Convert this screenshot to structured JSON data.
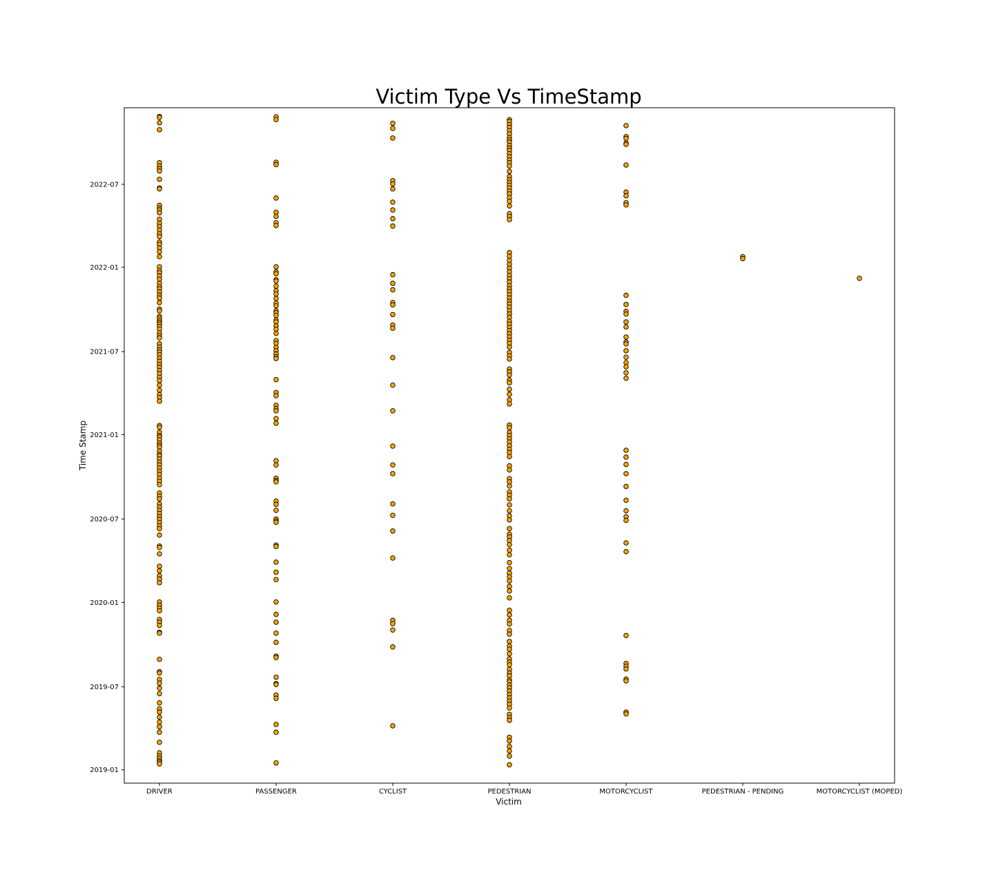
{
  "chart_data": {
    "type": "scatter",
    "title": "Victim Type Vs TimeStamp",
    "xlabel": "Victim",
    "ylabel": "Time Stamp",
    "categories": [
      "DRIVER",
      "PASSENGER",
      "CYCLIST",
      "PEDESTRIAN",
      "MOTORCYCLIST",
      "PEDESTRIAN - PENDING",
      "MOTORCYCLIST (MOPED)"
    ],
    "y_ticks": [
      "2019-01",
      "2019-07",
      "2020-01",
      "2020-07",
      "2021-01",
      "2021-07",
      "2022-01",
      "2022-07"
    ],
    "ylim": [
      "2018-12-03",
      "2022-12-15"
    ],
    "grid": false,
    "marker_face_color": "#FFA500",
    "marker_edge_color": "#000000",
    "series": [
      {
        "category": "DRIVER",
        "points": [
          "2022-11-26",
          "2022-11-24",
          "2022-11-12",
          "2022-10-28",
          "2022-08-17",
          "2022-08-10",
          "2022-08-04",
          "2022-07-30",
          "2022-07-12",
          "2022-06-23",
          "2022-06-21",
          "2022-05-16",
          "2022-05-10",
          "2022-05-06",
          "2022-04-30",
          "2022-04-16",
          "2022-04-07",
          "2022-03-31",
          "2022-03-23",
          "2022-03-15",
          "2022-03-09",
          "2022-02-25",
          "2022-02-20",
          "2022-02-12",
          "2022-02-04",
          "2022-01-24",
          "2022-01-02",
          "2021-12-25",
          "2021-12-20",
          "2021-12-13",
          "2021-12-06",
          "2021-11-27",
          "2021-11-20",
          "2021-11-15",
          "2021-11-08",
          "2021-11-01",
          "2021-10-26",
          "2021-10-16",
          "2021-10-02",
          "2021-09-28",
          "2021-09-16",
          "2021-09-12",
          "2021-09-07",
          "2021-09-03",
          "2021-08-30",
          "2021-08-25",
          "2021-08-19",
          "2021-08-11",
          "2021-08-05",
          "2021-07-31",
          "2021-07-18",
          "2021-07-11",
          "2021-07-05",
          "2021-06-30",
          "2021-06-24",
          "2021-06-17",
          "2021-06-10",
          "2021-06-03",
          "2021-05-28",
          "2021-05-21",
          "2021-05-14",
          "2021-05-06",
          "2021-04-29",
          "2021-04-19",
          "2021-04-08",
          "2021-03-29",
          "2021-03-23",
          "2021-03-15",
          "2021-01-21",
          "2021-01-17",
          "2021-01-06",
          "2020-12-30",
          "2020-12-27",
          "2020-12-21",
          "2020-12-14",
          "2020-12-09",
          "2020-12-05",
          "2020-11-26",
          "2020-11-19",
          "2020-11-16",
          "2020-11-09",
          "2020-11-02",
          "2020-10-27",
          "2020-10-20",
          "2020-10-13",
          "2020-10-06",
          "2020-09-28",
          "2020-09-21",
          "2020-09-14",
          "2020-08-27",
          "2020-08-20",
          "2020-08-14",
          "2020-08-03",
          "2020-07-27",
          "2020-07-20",
          "2020-07-13",
          "2020-07-06",
          "2020-06-30",
          "2020-06-23",
          "2020-06-16",
          "2020-06-10",
          "2020-05-27",
          "2020-05-03",
          "2020-04-30",
          "2020-04-16",
          "2020-03-20",
          "2020-03-10",
          "2020-02-28",
          "2020-02-21",
          "2020-02-13",
          "2020-01-02",
          "2019-12-26",
          "2019-12-20",
          "2019-12-14",
          "2019-11-25",
          "2019-11-19",
          "2019-11-12",
          "2019-10-28",
          "2019-10-26",
          "2019-08-30",
          "2019-08-03",
          "2019-07-31",
          "2019-07-17",
          "2019-07-09",
          "2019-06-28",
          "2019-06-16",
          "2019-05-27",
          "2019-05-14",
          "2019-05-07",
          "2019-04-26",
          "2019-04-15",
          "2019-04-05",
          "2019-03-24",
          "2019-03-02",
          "2019-02-07",
          "2019-01-31",
          "2019-01-26",
          "2019-01-21",
          "2019-01-18",
          "2019-01-14"
        ]
      },
      {
        "category": "PASSENGER",
        "points": [
          "2022-11-25",
          "2022-11-19",
          "2022-08-18",
          "2022-08-13",
          "2022-06-01",
          "2022-05-01",
          "2022-04-22",
          "2022-04-08",
          "2022-04-02",
          "2022-01-02",
          "2021-12-22",
          "2021-12-18",
          "2021-12-05",
          "2021-12-02",
          "2021-11-21",
          "2021-11-11",
          "2021-11-04",
          "2021-10-25",
          "2021-10-15",
          "2021-10-09",
          "2021-09-28",
          "2021-09-24",
          "2021-09-18",
          "2021-09-08",
          "2021-09-04",
          "2021-08-26",
          "2021-08-19",
          "2021-08-10",
          "2021-07-25",
          "2021-07-19",
          "2021-07-10",
          "2021-07-03",
          "2021-06-26",
          "2021-06-20",
          "2021-06-16",
          "2021-05-01",
          "2021-04-03",
          "2021-03-27",
          "2021-03-06",
          "2021-02-27",
          "2021-02-22",
          "2021-02-05",
          "2021-01-26",
          "2020-11-05",
          "2020-10-27",
          "2020-09-28",
          "2020-09-23",
          "2020-09-20",
          "2020-08-09",
          "2020-08-02",
          "2020-07-20",
          "2020-07-01",
          "2020-06-27",
          "2020-06-24",
          "2020-05-05",
          "2020-05-02",
          "2020-03-29",
          "2020-03-07",
          "2020-02-20",
          "2020-01-02",
          "2019-12-06",
          "2019-11-19",
          "2019-10-26",
          "2019-10-06",
          "2019-09-06",
          "2019-09-03",
          "2019-07-22",
          "2019-07-08",
          "2019-07-06",
          "2019-06-13",
          "2019-06-06",
          "2019-04-10",
          "2019-03-24",
          "2019-01-16"
        ]
      },
      {
        "category": "CYCLIST",
        "points": [
          "2022-11-11",
          "2022-10-31",
          "2022-10-10",
          "2022-07-09",
          "2022-07-02",
          "2022-06-21",
          "2022-05-23",
          "2022-05-06",
          "2022-04-17",
          "2022-04-01",
          "2021-12-16",
          "2021-11-27",
          "2021-11-13",
          "2021-10-16",
          "2021-10-11",
          "2021-09-20",
          "2021-08-28",
          "2021-08-21",
          "2021-06-18",
          "2021-04-19",
          "2021-02-22",
          "2020-12-07",
          "2020-10-27",
          "2020-10-08",
          "2020-08-03",
          "2020-07-09",
          "2020-06-05",
          "2020-04-07",
          "2019-11-23",
          "2019-11-16",
          "2019-11-02",
          "2019-09-26",
          "2019-04-07"
        ]
      },
      {
        "category": "PEDESTRIAN",
        "points": [
          "2022-11-19",
          "2022-11-15",
          "2022-11-08",
          "2022-11-02",
          "2022-10-26",
          "2022-10-19",
          "2022-10-11",
          "2022-10-06",
          "2022-10-01",
          "2022-09-24",
          "2022-09-18",
          "2022-09-13",
          "2022-09-06",
          "2022-08-30",
          "2022-08-23",
          "2022-08-17",
          "2022-08-10",
          "2022-07-29",
          "2022-07-18",
          "2022-07-11",
          "2022-07-05",
          "2022-06-29",
          "2022-06-23",
          "2022-06-16",
          "2022-06-10",
          "2022-06-02",
          "2022-05-25",
          "2022-05-15",
          "2022-04-28",
          "2022-04-22",
          "2022-04-15",
          "2022-02-02",
          "2022-01-25",
          "2022-01-16",
          "2022-01-07",
          "2021-12-30",
          "2021-12-22",
          "2021-12-14",
          "2021-12-07",
          "2021-11-30",
          "2021-11-22",
          "2021-11-15",
          "2021-11-09",
          "2021-11-02",
          "2021-10-26",
          "2021-10-19",
          "2021-10-13",
          "2021-10-06",
          "2021-09-28",
          "2021-09-21",
          "2021-09-14",
          "2021-09-05",
          "2021-08-30",
          "2021-08-23",
          "2021-08-16",
          "2021-08-09",
          "2021-08-02",
          "2021-07-26",
          "2021-07-19",
          "2021-07-11",
          "2021-06-29",
          "2021-06-22",
          "2021-06-15",
          "2021-05-24",
          "2021-05-18",
          "2021-05-11",
          "2021-04-30",
          "2021-04-24",
          "2021-04-10",
          "2021-03-30",
          "2021-03-18",
          "2021-03-09",
          "2021-01-22",
          "2021-01-16",
          "2021-01-06",
          "2020-12-30",
          "2020-12-23",
          "2020-12-16",
          "2020-12-08",
          "2020-11-30",
          "2020-11-23",
          "2020-11-14",
          "2020-10-25",
          "2020-10-16",
          "2020-09-27",
          "2020-09-20",
          "2020-09-11",
          "2020-08-29",
          "2020-08-22",
          "2020-08-14",
          "2020-08-01",
          "2020-07-19",
          "2020-07-08",
          "2020-06-29",
          "2020-06-10",
          "2020-05-29",
          "2020-05-23",
          "2020-05-15",
          "2020-05-06",
          "2020-04-24",
          "2020-04-14",
          "2020-03-28",
          "2020-03-15",
          "2020-03-05",
          "2020-02-26",
          "2020-02-17",
          "2020-02-05",
          "2020-01-26",
          "2020-01-11",
          "2019-12-15",
          "2019-12-05",
          "2019-11-23",
          "2019-11-15",
          "2019-11-01",
          "2019-10-24",
          "2019-10-08",
          "2019-09-28",
          "2019-09-21",
          "2019-09-11",
          "2019-08-31",
          "2019-08-24",
          "2019-08-18",
          "2019-08-08",
          "2019-07-31",
          "2019-07-25",
          "2019-07-16",
          "2019-07-12",
          "2019-07-05",
          "2019-06-29",
          "2019-06-22",
          "2019-06-14",
          "2019-06-07",
          "2019-05-31",
          "2019-05-24",
          "2019-05-16",
          "2019-05-02",
          "2019-04-25",
          "2019-04-19",
          "2019-03-13",
          "2019-03-05",
          "2019-02-21",
          "2019-02-11",
          "2019-01-31",
          "2019-01-12"
        ]
      },
      {
        "category": "MOTORCYCLIST",
        "points": [
          "2022-11-06",
          "2022-10-13",
          "2022-10-09",
          "2022-09-29",
          "2022-09-26",
          "2022-08-12",
          "2022-06-14",
          "2022-06-06",
          "2022-05-22",
          "2022-05-17",
          "2021-11-01",
          "2021-10-12",
          "2021-09-27",
          "2021-09-21",
          "2021-09-04",
          "2021-08-24",
          "2021-08-02",
          "2021-07-22",
          "2021-07-18",
          "2021-07-03",
          "2021-06-19",
          "2021-06-07",
          "2021-05-29",
          "2021-05-16",
          "2021-05-04",
          "2020-11-28",
          "2020-11-13",
          "2020-10-28",
          "2020-10-08",
          "2020-09-10",
          "2020-08-11",
          "2020-07-19",
          "2020-07-06",
          "2020-06-28",
          "2020-05-10",
          "2020-04-21",
          "2019-10-21",
          "2019-08-21",
          "2019-08-15",
          "2019-08-09",
          "2019-07-18",
          "2019-07-14",
          "2019-05-07",
          "2019-05-03"
        ]
      },
      {
        "category": "PEDESTRIAN - PENDING",
        "points": [
          "2022-01-24",
          "2022-01-20"
        ]
      },
      {
        "category": "MOTORCYCLIST (MOPED)",
        "points": [
          "2021-12-08"
        ]
      }
    ]
  }
}
